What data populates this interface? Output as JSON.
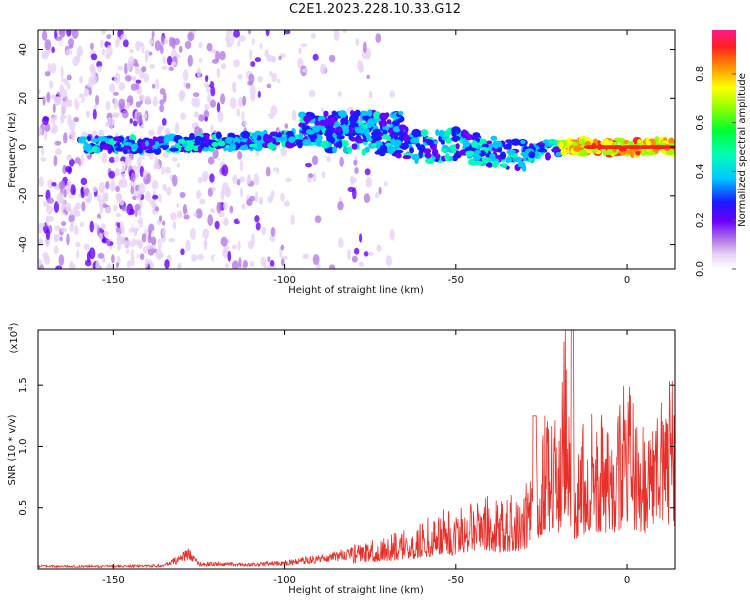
{
  "title": "C2E1.2023.228.10.33.G12",
  "chart_data": [
    {
      "type": "heatmap",
      "name": "spectrogram",
      "xlabel": "Height of straight line (km)",
      "ylabel": "Frequency (Hz)",
      "xlim": [
        -172,
        14
      ],
      "ylim": [
        -50,
        48
      ],
      "xticks": [
        -150,
        -100,
        -50,
        0
      ],
      "yticks": [
        -40,
        -20,
        0,
        20,
        40
      ],
      "colorbar": {
        "label": "Normalized spectral amplitude",
        "range": [
          0,
          0.98
        ],
        "ticks": [
          0.0,
          0.2,
          0.4,
          0.6,
          0.8
        ]
      },
      "ridge": {
        "description_points_x": [
          -160,
          -140,
          -120,
          -100,
          -90,
          -80,
          -70,
          -60,
          -50,
          -40,
          -30,
          -20,
          -10,
          0,
          14
        ],
        "description_points_y": [
          1,
          1,
          2,
          3,
          5,
          4,
          3,
          0,
          1,
          -2,
          -3,
          0,
          0,
          0,
          0
        ]
      }
    },
    {
      "type": "line",
      "name": "snr",
      "xlabel": "Height of straight line (km)",
      "ylabel": "SNR (10 * v/v)",
      "scale_label": "(x10",
      "scale_exp": "4",
      "scale_close": ")",
      "xlim": [
        -172,
        14
      ],
      "ylim": [
        0,
        1.95
      ],
      "xticks": [
        -150,
        -100,
        -50,
        0
      ],
      "yticks": [
        0.5,
        1.0,
        1.5
      ],
      "envelope": {
        "x": [
          -172,
          -150,
          -135,
          -128,
          -125,
          -110,
          -100,
          -90,
          -80,
          -70,
          -60,
          -55,
          -50,
          -45,
          -40,
          -35,
          -30,
          -25,
          -22,
          -20,
          -18,
          -16,
          -10,
          -5,
          0,
          5,
          10,
          14
        ],
        "y": [
          0.03,
          0.03,
          0.04,
          0.17,
          0.06,
          0.05,
          0.07,
          0.12,
          0.18,
          0.25,
          0.35,
          0.45,
          0.45,
          0.6,
          0.55,
          0.55,
          0.6,
          1.1,
          1.25,
          0.95,
          1.95,
          0.95,
          1.25,
          1.05,
          1.45,
          1.05,
          1.5,
          1.4
        ]
      },
      "color": "#e8302a"
    }
  ],
  "colors": {
    "line": "#e8302a",
    "axis": "#000000"
  }
}
